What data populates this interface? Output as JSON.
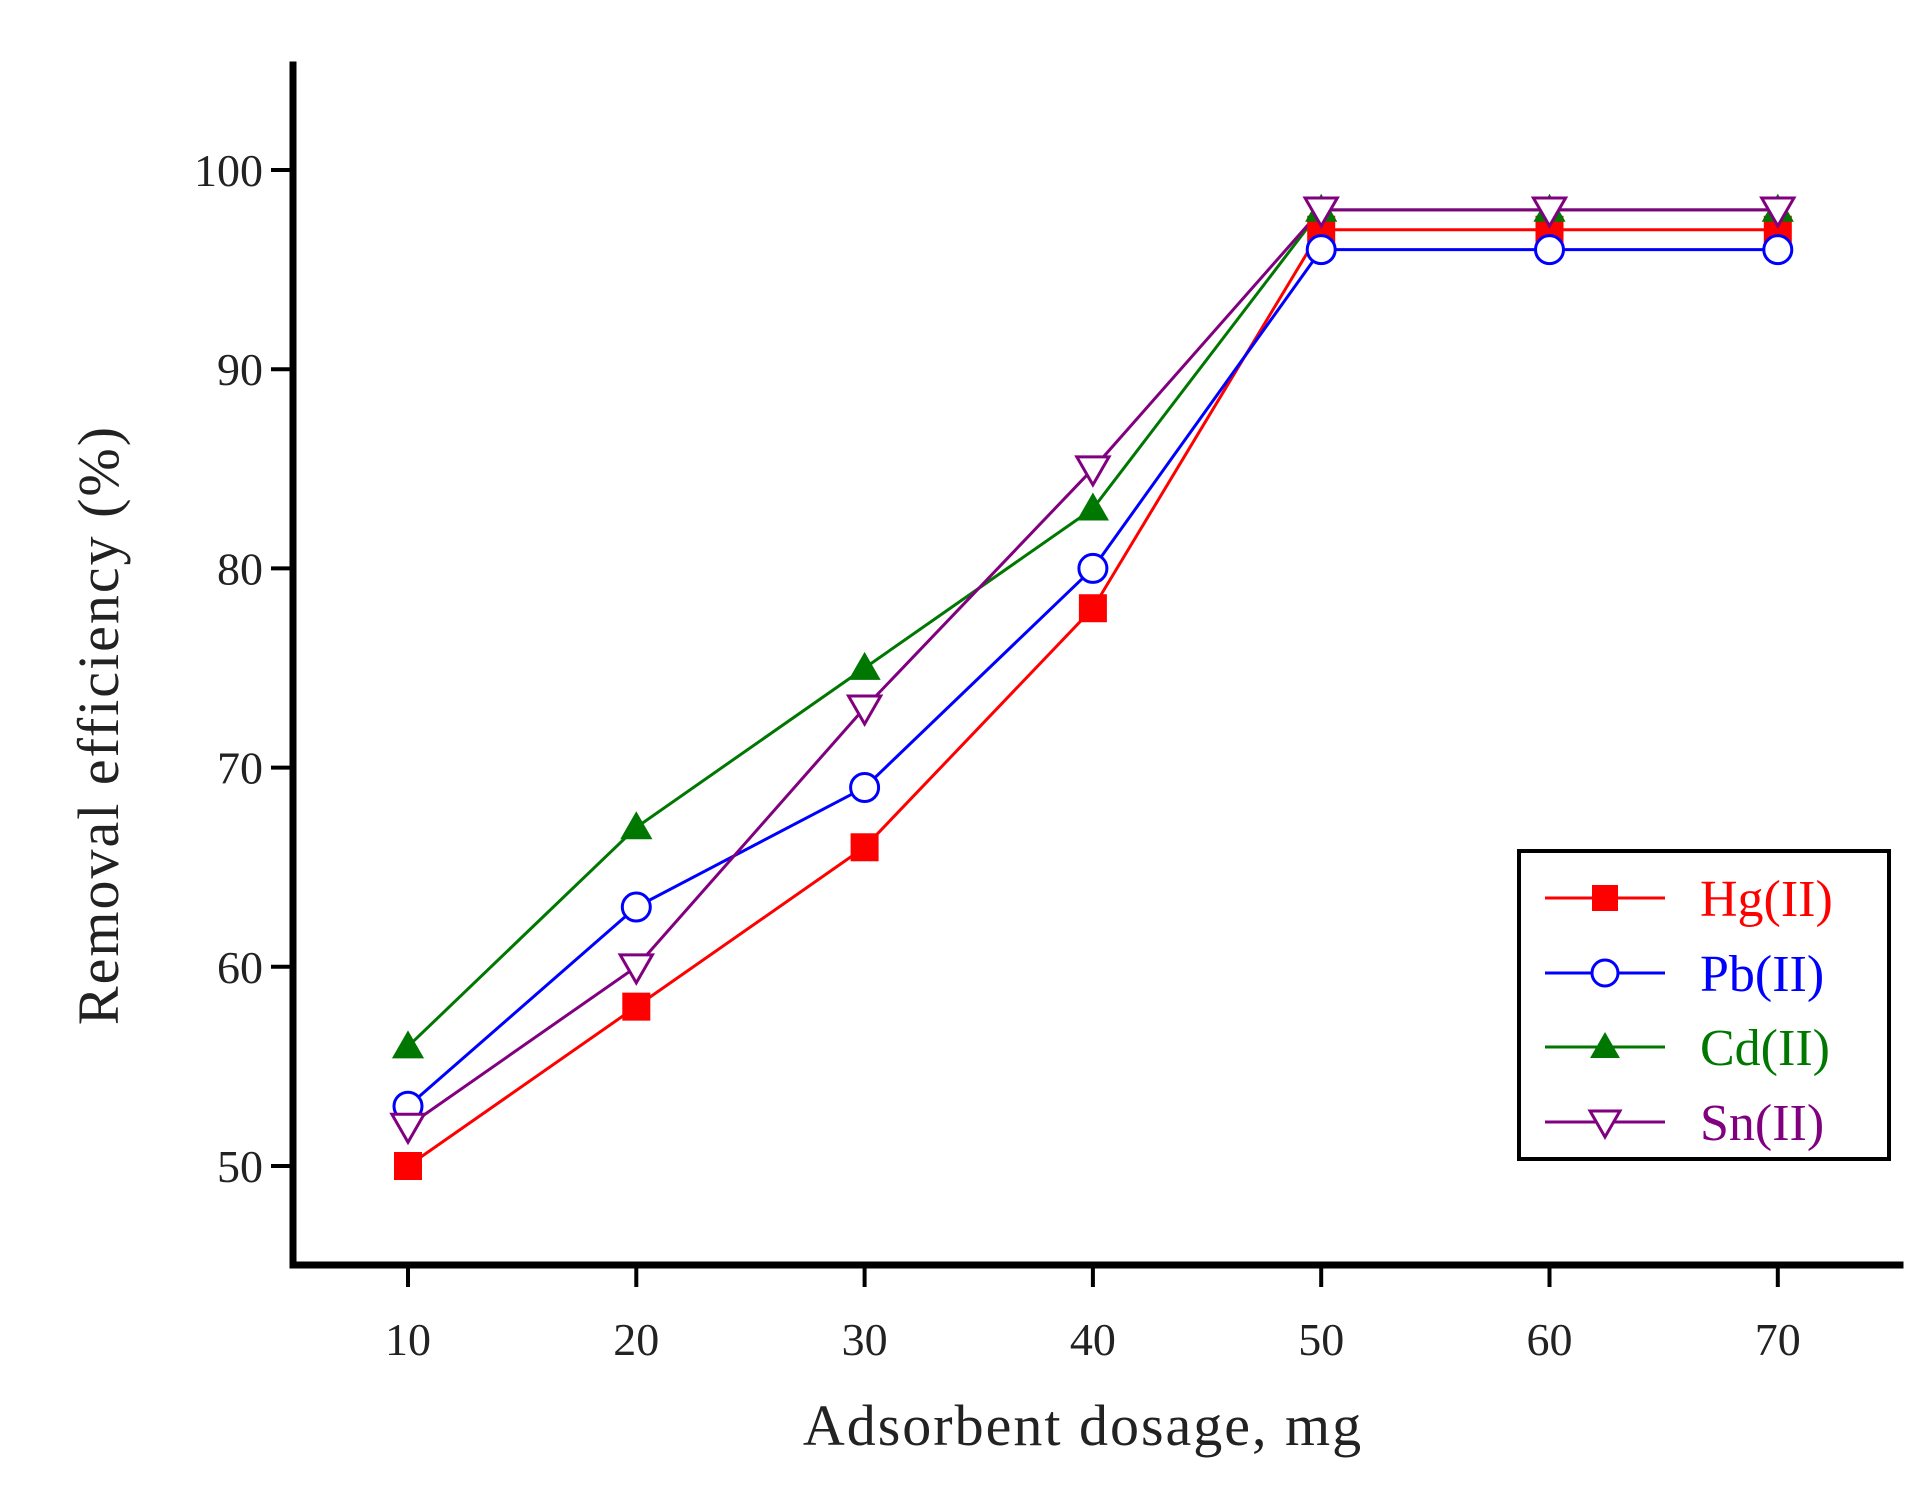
{
  "chart_data": {
    "type": "line",
    "title": "",
    "xlabel": "Adsorbent dosage, mg",
    "ylabel": "Removal efficiency (%)",
    "x": [
      10,
      20,
      30,
      40,
      50,
      60,
      70
    ],
    "x_ticks": [
      "10",
      "20",
      "30",
      "40",
      "50",
      "60",
      "70"
    ],
    "y_ticks": [
      "50",
      "60",
      "70",
      "80",
      "90",
      "100"
    ],
    "xlim": [
      5,
      75
    ],
    "ylim": [
      45,
      105
    ],
    "grid": false,
    "legend_position": "bottom-right",
    "series": [
      {
        "name": "Hg(II)",
        "color": "#ff0000",
        "marker": "filled-square",
        "values": [
          50,
          58,
          66,
          78,
          97,
          97,
          97
        ]
      },
      {
        "name": "Pb(II)",
        "color": "#0000ff",
        "marker": "open-circle",
        "values": [
          53,
          63,
          69,
          80,
          96,
          96,
          96
        ]
      },
      {
        "name": "Cd(II)",
        "color": "#007700",
        "marker": "filled-triangle-up",
        "values": [
          56,
          67,
          75,
          83,
          98,
          98,
          98
        ]
      },
      {
        "name": "Sn(II)",
        "color": "#800080",
        "marker": "open-triangle-down",
        "values": [
          52,
          60,
          73,
          85,
          98,
          98,
          98
        ]
      }
    ]
  }
}
